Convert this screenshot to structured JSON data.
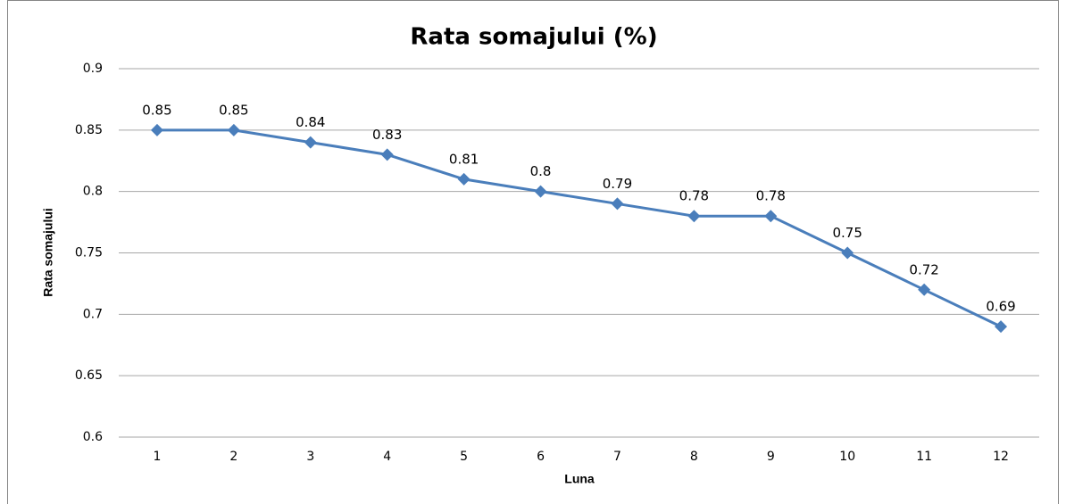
{
  "chart_data": {
    "type": "line",
    "title": "Rata somajului (%)",
    "x_label": "Luna",
    "y_label": "Rata somajului",
    "categories": [
      "1",
      "2",
      "3",
      "4",
      "5",
      "6",
      "7",
      "8",
      "9",
      "10",
      "11",
      "12"
    ],
    "series": [
      {
        "name": "Rata somajului",
        "color": "#4a7ebb",
        "values": [
          0.85,
          0.85,
          0.84,
          0.83,
          0.81,
          0.8,
          0.79,
          0.78,
          0.78,
          0.75,
          0.72,
          0.69
        ]
      }
    ],
    "ylim": [
      0.6,
      0.9
    ],
    "yticks": [
      0.6,
      0.65,
      0.7,
      0.75,
      0.8,
      0.85,
      0.9
    ],
    "grid": true
  }
}
